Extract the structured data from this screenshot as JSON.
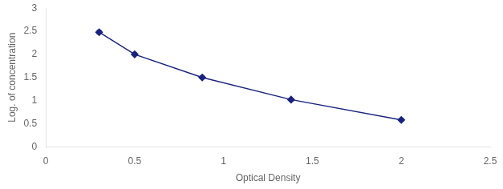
{
  "chart_data": {
    "type": "line",
    "x": [
      0.3,
      0.5,
      0.88,
      1.38,
      2.0
    ],
    "values": [
      2.48,
      2.0,
      1.5,
      1.02,
      0.58
    ],
    "yerr": [
      0.04,
      0.03,
      0.03,
      0.03,
      0.03
    ],
    "color": "#1a237e",
    "marker": "diamond",
    "line_style": "solid",
    "xlabel": "Optical Density",
    "ylabel": "Log. of concentration",
    "xlim": [
      0,
      2.5
    ],
    "ylim": [
      0,
      3
    ],
    "xticks": [
      0,
      0.5,
      1,
      1.5,
      2,
      2.5
    ],
    "yticks": [
      0,
      0.5,
      1,
      1.5,
      2,
      2.5,
      3
    ],
    "grid": false
  }
}
